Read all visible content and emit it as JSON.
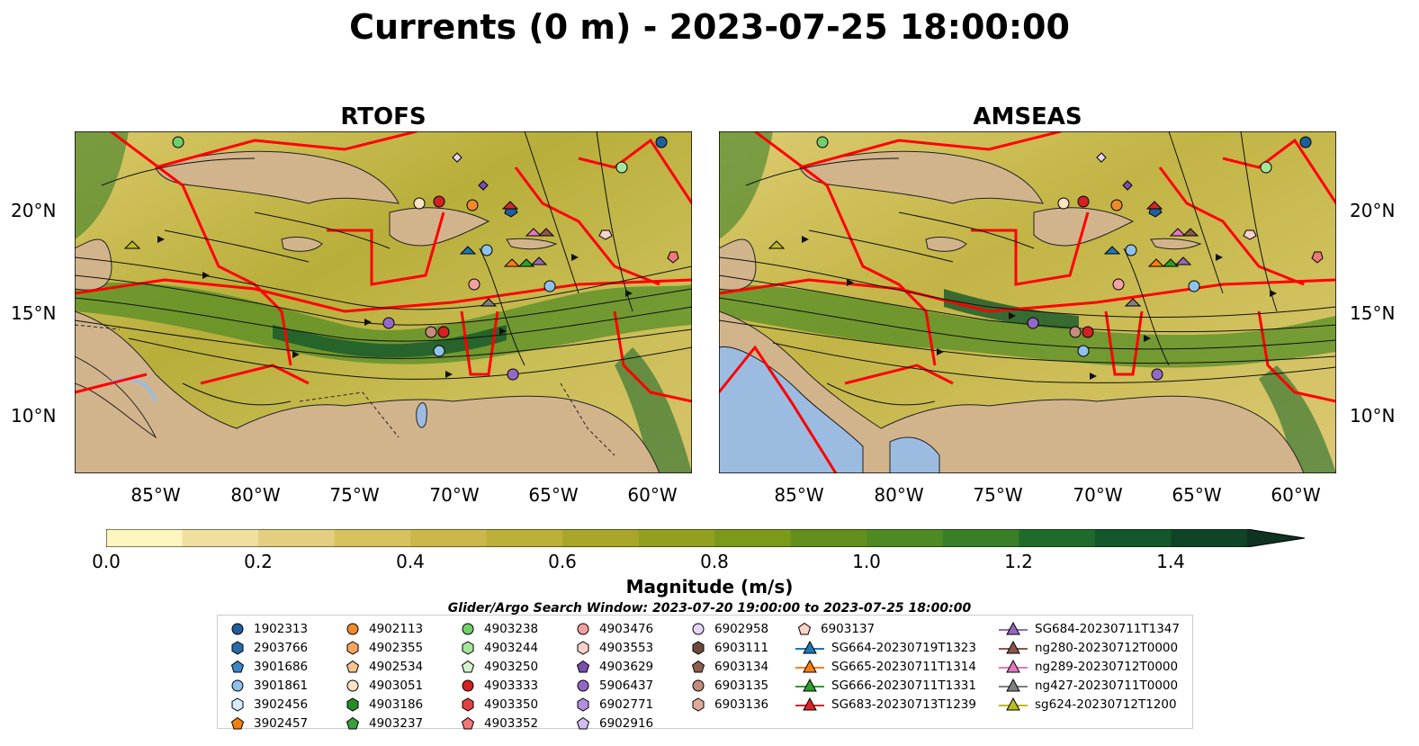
{
  "title": "Currents (0 m) - 2023-07-25 18:00:00",
  "panels": [
    {
      "title": "RTOFS"
    },
    {
      "title": "AMSEAS"
    }
  ],
  "axes": {
    "lat_labels": [
      "20°N",
      "15°N",
      "10°N"
    ],
    "lon_labels": [
      "85°W",
      "80°W",
      "75°W",
      "70°W",
      "65°W",
      "60°W"
    ]
  },
  "colorbar": {
    "label": "Magnitude (m/s)",
    "ticks": [
      "0.0",
      "0.2",
      "0.4",
      "0.6",
      "0.8",
      "1.0",
      "1.2",
      "1.4"
    ],
    "range": [
      0,
      1.5
    ],
    "extend": "max",
    "colors": [
      "#fdf6bf",
      "#f0e0a0",
      "#e3cf7f",
      "#d7c260",
      "#ccb84a",
      "#bcb038",
      "#a9a72a",
      "#93a01f",
      "#7b9a1a",
      "#638f1c",
      "#4d8a22",
      "#3a7e28",
      "#206b2c",
      "#14572a",
      "#0f4426",
      "#0e3320"
    ]
  },
  "search_window": "Glider/Argo Search Window: 2023-07-20 19:00:00 to 2023-07-25 18:00:00",
  "legend": {
    "columns": [
      [
        {
          "label": "1902313",
          "marker": "circle",
          "color": "#1f5f9c"
        },
        {
          "label": "2903766",
          "marker": "hexagon",
          "color": "#2a6aaa"
        },
        {
          "label": "3901686",
          "marker": "pentagon",
          "color": "#3b86c6"
        },
        {
          "label": "3901861",
          "marker": "circle",
          "color": "#8fc2ea"
        },
        {
          "label": "3902456",
          "marker": "hexagon",
          "color": "#d6ecfa"
        },
        {
          "label": "3902457",
          "marker": "pentagon",
          "color": "#f07f12"
        }
      ],
      [
        {
          "label": "4902113",
          "marker": "circle",
          "color": "#f08a2a"
        },
        {
          "label": "4902355",
          "marker": "hexagon",
          "color": "#f7a65c"
        },
        {
          "label": "4902534",
          "marker": "pentagon",
          "color": "#f8c48e"
        },
        {
          "label": "4903051",
          "marker": "circle",
          "color": "#fde3c4"
        },
        {
          "label": "4903186",
          "marker": "hexagon",
          "color": "#2a8a2a"
        },
        {
          "label": "4903237",
          "marker": "pentagon",
          "color": "#3aa03a"
        }
      ],
      [
        {
          "label": "4903238",
          "marker": "circle",
          "color": "#6fcf6a"
        },
        {
          "label": "4903244",
          "marker": "hexagon",
          "color": "#a6e59b"
        },
        {
          "label": "4903250",
          "marker": "pentagon",
          "color": "#d4f3cc"
        },
        {
          "label": "4903333",
          "marker": "circle",
          "color": "#d42020"
        },
        {
          "label": "4903350",
          "marker": "hexagon",
          "color": "#e04040"
        },
        {
          "label": "4903352",
          "marker": "pentagon",
          "color": "#f07878"
        }
      ],
      [
        {
          "label": "4903476",
          "marker": "circle",
          "color": "#f4a0a0"
        },
        {
          "label": "4903553",
          "marker": "hexagon",
          "color": "#fcd0cc"
        },
        {
          "label": "4903629",
          "marker": "pentagon",
          "color": "#7a4fb0"
        },
        {
          "label": "5906437",
          "marker": "circle",
          "color": "#9468c8"
        },
        {
          "label": "6902771",
          "marker": "hexagon",
          "color": "#b28ee0"
        },
        {
          "label": "6902916",
          "marker": "pentagon",
          "color": "#d2bcf0"
        }
      ],
      [
        {
          "label": "6902958",
          "marker": "circle",
          "color": "#e6d4f8"
        },
        {
          "label": "6903111",
          "marker": "hexagon",
          "color": "#6e4a3e"
        },
        {
          "label": "6903134",
          "marker": "pentagon",
          "color": "#8c5e52"
        },
        {
          "label": "6903135",
          "marker": "circle",
          "color": "#c48b7e"
        },
        {
          "label": "6903136",
          "marker": "hexagon",
          "color": "#e0aa9a"
        }
      ],
      [
        {
          "label": "6903137",
          "marker": "pentagon",
          "color": "#fbd4c4"
        },
        {
          "label": "SG664-20230719T1323",
          "marker": "triangle-line",
          "color": "#1f77b4"
        },
        {
          "label": "SG665-20230711T1314",
          "marker": "triangle-line",
          "color": "#ff7f0e"
        },
        {
          "label": "SG666-20230711T1331",
          "marker": "triangle-line",
          "color": "#2ca02c"
        },
        {
          "label": "SG683-20230713T1239",
          "marker": "triangle-line",
          "color": "#d62728"
        }
      ],
      [
        {
          "label": "SG684-20230711T1347",
          "marker": "triangle-line",
          "color": "#9467bd"
        },
        {
          "label": "ng280-20230712T0000",
          "marker": "triangle-line",
          "color": "#8c564b"
        },
        {
          "label": "ng289-20230712T0000",
          "marker": "triangle-line",
          "color": "#e377c2"
        },
        {
          "label": "ng427-20230711T0000",
          "marker": "triangle-line",
          "color": "#7f7f7f"
        },
        {
          "label": "sg624-20230712T1200",
          "marker": "triangle-line",
          "color": "#bcbd22"
        }
      ]
    ]
  },
  "map_style": {
    "land": "#d2b48c",
    "water_lakes": "#9bbce0",
    "ocean_bg": "#c9c060",
    "eez_lines": "#ff0000",
    "streamlines": "#111111",
    "pacific_fill_amseas": "#9bbce0"
  },
  "contour_label": "1000"
}
